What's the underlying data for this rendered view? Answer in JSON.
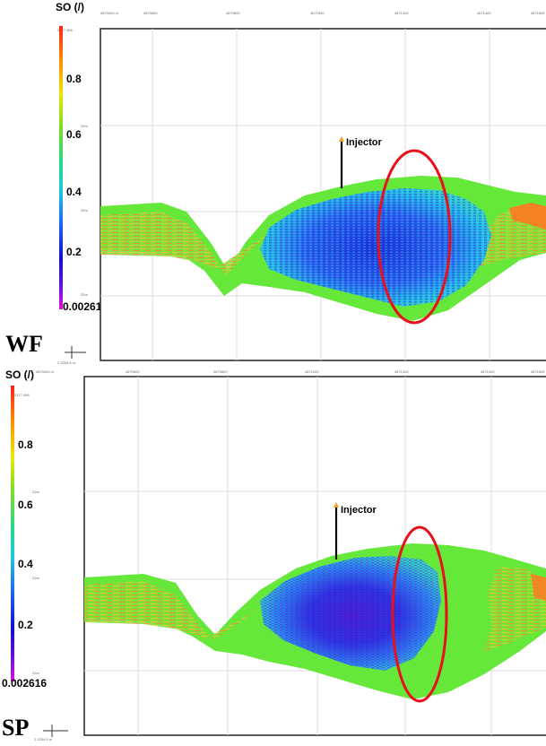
{
  "colorbar": {
    "property_label": "SO (/)",
    "max_label": "2177.456",
    "tick_labels": [
      "0.8",
      "0.6",
      "0.4",
      "0.2",
      "0.002616"
    ],
    "depth_labels": [
      "22m",
      "22m",
      "22m"
    ],
    "colors": [
      "#ff2020",
      "#ff8c00",
      "#e8e800",
      "#7bdc2a",
      "#25d98a",
      "#1fc6dc",
      "#1e64f0",
      "#1010c8",
      "#6a12d8",
      "#e010e0"
    ]
  },
  "well": {
    "label": "Injector"
  },
  "axis": {
    "top_ticks": [
      "4670400 m",
      "4670600",
      "4670800",
      "4671000",
      "4671200",
      "4671400",
      "4671600"
    ],
    "origin_label": "2 2254.5 m"
  },
  "panels": [
    {
      "id": "wf",
      "scenario_label": "WF"
    },
    {
      "id": "sp",
      "scenario_label": "SP"
    }
  ],
  "colors": {
    "highlight_ellipse": "#e8101a",
    "frame": "#222222",
    "shell": "#66e83a",
    "oil": "#2a4ae8"
  }
}
